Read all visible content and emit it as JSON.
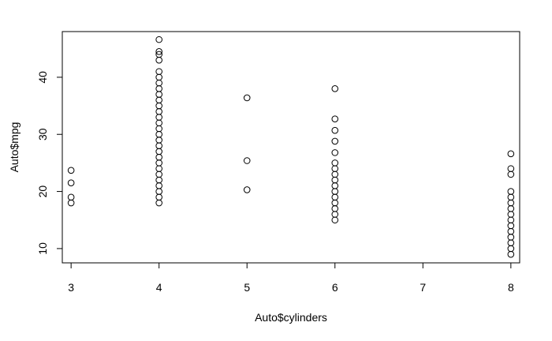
{
  "chart_data": {
    "type": "scatter",
    "title": "",
    "xlabel": "Auto$cylinders",
    "ylabel": "Auto$mpg",
    "xlim": [
      2.9,
      8.1
    ],
    "ylim": [
      7.5,
      48.0
    ],
    "x_ticks": [
      3,
      4,
      5,
      6,
      7,
      8
    ],
    "y_ticks": [
      10,
      20,
      30,
      40
    ],
    "grid": false,
    "legend": "none",
    "point_style": "open-circle",
    "colors": {
      "point": "#000000",
      "axis": "#000000",
      "background": "#ffffff"
    },
    "series": [
      {
        "points": [
          [
            3,
            18.0
          ],
          [
            3,
            19.0
          ],
          [
            3,
            21.5
          ],
          [
            3,
            23.7
          ],
          [
            4,
            18.0
          ],
          [
            4,
            19.0
          ],
          [
            4,
            20.0
          ],
          [
            4,
            21.0
          ],
          [
            4,
            22.0
          ],
          [
            4,
            23.0
          ],
          [
            4,
            24.0
          ],
          [
            4,
            25.0
          ],
          [
            4,
            26.0
          ],
          [
            4,
            27.0
          ],
          [
            4,
            28.0
          ],
          [
            4,
            29.0
          ],
          [
            4,
            30.0
          ],
          [
            4,
            31.0
          ],
          [
            4,
            32.0
          ],
          [
            4,
            33.0
          ],
          [
            4,
            34.0
          ],
          [
            4,
            35.0
          ],
          [
            4,
            36.0
          ],
          [
            4,
            37.0
          ],
          [
            4,
            38.0
          ],
          [
            4,
            39.0
          ],
          [
            4,
            40.0
          ],
          [
            4,
            41.0
          ],
          [
            4,
            43.0
          ],
          [
            4,
            44.0
          ],
          [
            4,
            44.5
          ],
          [
            4,
            46.6
          ],
          [
            5,
            20.3
          ],
          [
            5,
            25.4
          ],
          [
            5,
            36.4
          ],
          [
            6,
            15.0
          ],
          [
            6,
            16.0
          ],
          [
            6,
            17.0
          ],
          [
            6,
            18.0
          ],
          [
            6,
            19.0
          ],
          [
            6,
            20.0
          ],
          [
            6,
            21.0
          ],
          [
            6,
            22.0
          ],
          [
            6,
            23.0
          ],
          [
            6,
            24.0
          ],
          [
            6,
            25.0
          ],
          [
            6,
            26.8
          ],
          [
            6,
            28.8
          ],
          [
            6,
            30.7
          ],
          [
            6,
            32.7
          ],
          [
            6,
            38.0
          ],
          [
            8,
            9.0
          ],
          [
            8,
            10.0
          ],
          [
            8,
            11.0
          ],
          [
            8,
            12.0
          ],
          [
            8,
            13.0
          ],
          [
            8,
            14.0
          ],
          [
            8,
            15.0
          ],
          [
            8,
            16.0
          ],
          [
            8,
            17.0
          ],
          [
            8,
            18.0
          ],
          [
            8,
            19.0
          ],
          [
            8,
            20.0
          ],
          [
            8,
            23.0
          ],
          [
            8,
            24.0
          ],
          [
            8,
            26.6
          ]
        ]
      }
    ]
  }
}
